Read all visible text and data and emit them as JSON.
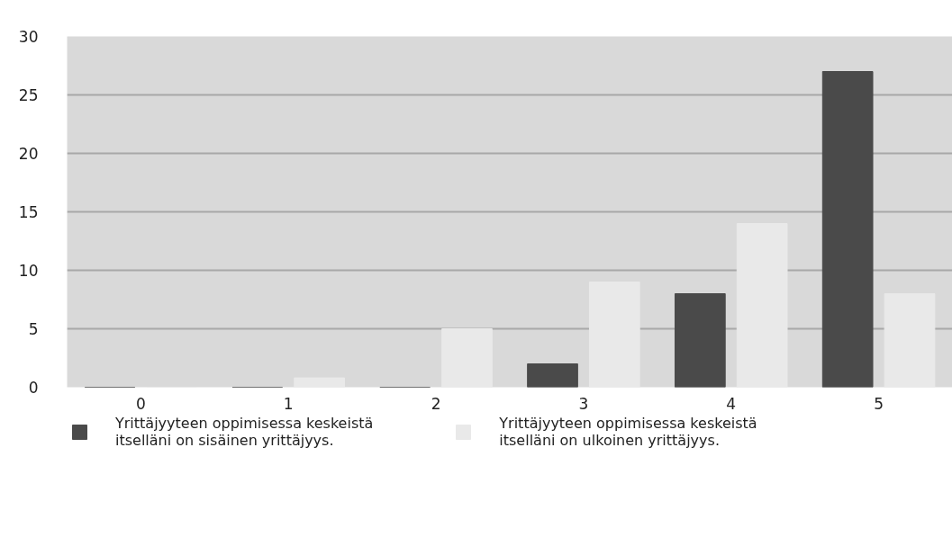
{
  "chart_data": {
    "type": "bar",
    "categories": [
      "0",
      "1",
      "2",
      "3",
      "4",
      "5"
    ],
    "series": [
      {
        "name": "Yrittäjyyteen oppimisessa keskeistä itselläni on sisäinen yrittäjyys.",
        "color": "#4a4a4a",
        "values": [
          0,
          0,
          0,
          2,
          8,
          27
        ]
      },
      {
        "name": "Yrittäjyyteen oppimisessa keskeistä itselläni on ulkoinen yrittäjyys.",
        "color": "#e9e9e9",
        "values": [
          0,
          0.8,
          5,
          9,
          14,
          8
        ]
      }
    ],
    "ylim": [
      0,
      30
    ],
    "yticks": [
      0,
      5,
      10,
      15,
      20,
      25,
      30
    ],
    "grid": "y",
    "legend": "bottom"
  }
}
